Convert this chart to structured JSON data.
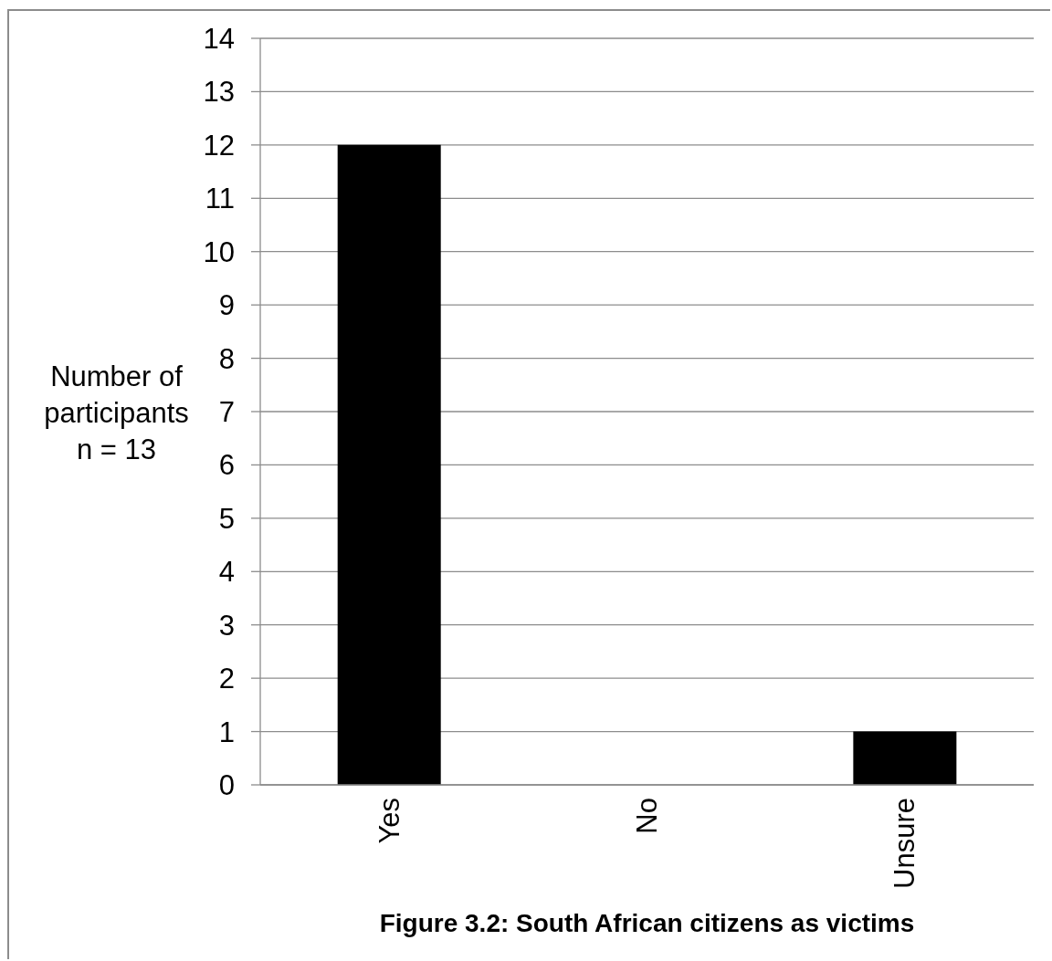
{
  "chart_data": {
    "type": "bar",
    "title": "Figure 3.2: South African citizens as victims",
    "ylabel": "Number of\nparticipants\nn = 13",
    "categories": [
      "Yes",
      "No",
      "Unsure"
    ],
    "values": [
      12,
      0,
      1
    ],
    "color": "#000000",
    "ylim": [
      0,
      14
    ],
    "yticks": [
      0,
      1,
      2,
      3,
      4,
      5,
      6,
      7,
      8,
      9,
      10,
      11,
      12,
      13,
      14
    ],
    "grid": "y"
  }
}
